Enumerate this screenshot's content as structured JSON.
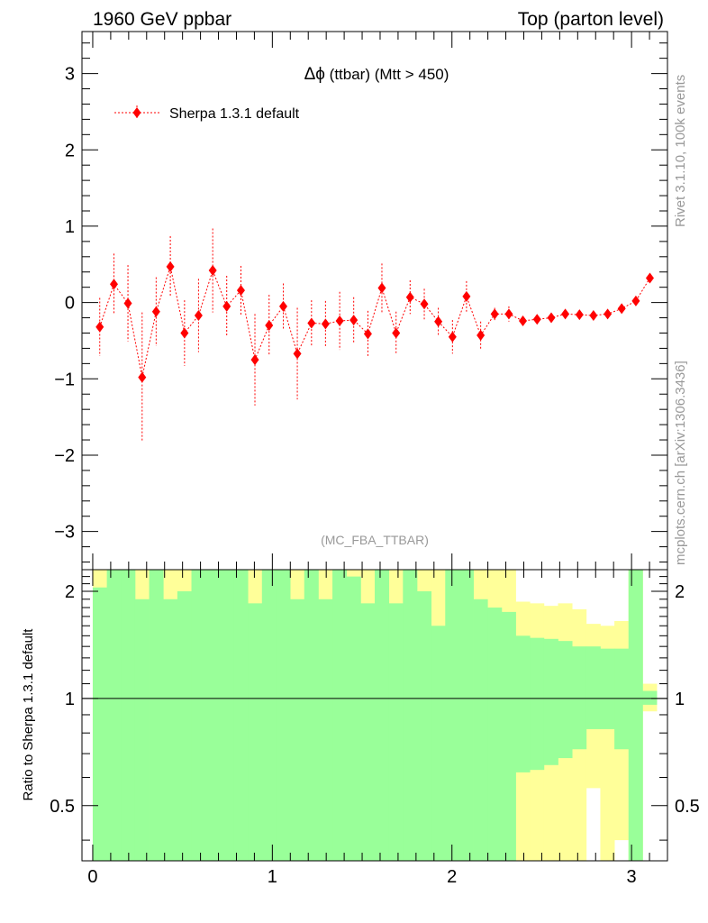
{
  "header": {
    "left": "1960 GeV ppbar",
    "right": "Top (parton level)"
  },
  "side_labels": {
    "rivet": "Rivet 3.1.10,  100k events",
    "mcplots": "mcplots.cern.ch [arXiv:1306.3436]"
  },
  "colors": {
    "series": "#ff0000",
    "band_inner": "#99ff99",
    "band_outer": "#ffff99",
    "axis": "#000000",
    "watermark": "#999999"
  },
  "chart_data": {
    "type": "scatter",
    "title": "Δϕ (ttbar) (Mtt > 450)",
    "title_symbol": "Δϕ",
    "title_rest": " (ttbar) (Mtt > 450)",
    "analysis": "(MC_FBA_TTBAR)",
    "xlim": [
      -0.06,
      3.2
    ],
    "ylim": [
      -3.5,
      3.55
    ],
    "x_ticks": [
      0,
      1,
      2,
      3
    ],
    "y_ticks": [
      -3,
      -2,
      -1,
      0,
      1,
      2,
      3
    ],
    "y_tick_labels": [
      "−3",
      "−2",
      "−1",
      "0",
      "1",
      "2",
      "3"
    ],
    "legend": "Sherpa 1.3.1 default",
    "legend_position": "top-left",
    "series": [
      {
        "name": "Sherpa 1.3.1 default",
        "x": [
          0.039,
          0.118,
          0.196,
          0.275,
          0.353,
          0.432,
          0.511,
          0.589,
          0.668,
          0.746,
          0.825,
          0.903,
          0.982,
          1.061,
          1.139,
          1.218,
          1.296,
          1.375,
          1.453,
          1.532,
          1.61,
          1.689,
          1.767,
          1.846,
          1.924,
          2.003,
          2.081,
          2.16,
          2.238,
          2.317,
          2.395,
          2.474,
          2.553,
          2.631,
          2.71,
          2.788,
          2.867,
          2.945,
          3.024,
          3.102
        ],
        "y": [
          -0.32,
          0.24,
          -0.01,
          -0.98,
          -0.12,
          0.47,
          -0.4,
          -0.17,
          0.42,
          -0.05,
          0.16,
          -0.75,
          -0.3,
          -0.05,
          -0.67,
          -0.27,
          -0.28,
          -0.24,
          -0.23,
          -0.41,
          0.19,
          -0.4,
          0.07,
          -0.02,
          -0.25,
          -0.45,
          0.08,
          -0.43,
          -0.15,
          -0.15,
          -0.24,
          -0.22,
          -0.2,
          -0.15,
          -0.16,
          -0.17,
          -0.15,
          -0.08,
          0.02,
          0.32
        ],
        "yerr": [
          0.38,
          0.4,
          0.5,
          0.85,
          0.45,
          0.4,
          0.43,
          0.48,
          0.55,
          0.4,
          0.32,
          0.6,
          0.4,
          0.3,
          0.6,
          0.3,
          0.3,
          0.38,
          0.3,
          0.3,
          0.32,
          0.28,
          0.22,
          0.2,
          0.18,
          0.22,
          0.2,
          0.18,
          0.08,
          0.1,
          0.06,
          0.06,
          0.05,
          0.04,
          0.04,
          0.04,
          0.04,
          0.04,
          0.04,
          0.04
        ]
      }
    ],
    "ratio_panel": {
      "ylabel": "Ratio to Sherpa 1.3.1 default",
      "ylim": [
        0.35,
        2.3
      ],
      "y_ticks": [
        0.5,
        1,
        2
      ],
      "y_tick_labels": [
        "0.5",
        "1",
        "2"
      ],
      "reference_line": 1,
      "bin_edges": [
        0.0,
        0.0785,
        0.157,
        0.2355,
        0.314,
        0.3925,
        0.471,
        0.5495,
        0.628,
        0.7065,
        0.785,
        0.8635,
        0.942,
        1.0205,
        1.099,
        1.1775,
        1.256,
        1.3345,
        1.413,
        1.4915,
        1.57,
        1.6485,
        1.727,
        1.8055,
        1.884,
        1.9625,
        2.041,
        2.1195,
        2.198,
        2.2765,
        2.355,
        2.4335,
        2.512,
        2.5905,
        2.669,
        2.7475,
        2.826,
        2.9045,
        2.983,
        3.0615,
        3.14
      ],
      "inner_band_upper": [
        2.05,
        2.3,
        2.3,
        1.9,
        2.3,
        1.9,
        2.0,
        2.3,
        2.3,
        2.3,
        2.3,
        1.85,
        2.3,
        2.3,
        1.9,
        2.3,
        1.9,
        2.3,
        2.2,
        1.85,
        2.3,
        1.85,
        2.3,
        2.0,
        1.6,
        2.3,
        2.3,
        1.9,
        1.8,
        1.75,
        1.5,
        1.48,
        1.47,
        1.45,
        1.4,
        1.4,
        1.38,
        1.38,
        2.3,
        1.05
      ],
      "outer_band_upper": [
        2.3,
        2.3,
        2.3,
        2.3,
        2.3,
        2.3,
        2.3,
        2.3,
        2.3,
        2.3,
        2.3,
        2.3,
        2.3,
        2.3,
        2.3,
        2.3,
        2.3,
        2.3,
        2.3,
        2.3,
        2.3,
        2.3,
        2.3,
        2.3,
        2.3,
        2.3,
        2.3,
        2.3,
        2.3,
        2.3,
        1.87,
        1.85,
        1.82,
        1.85,
        1.78,
        1.62,
        1.6,
        1.65,
        2.3,
        1.1
      ],
      "inner_band_lower": [
        0.35,
        0.35,
        0.35,
        0.35,
        0.35,
        0.35,
        0.35,
        0.35,
        0.35,
        0.35,
        0.35,
        0.35,
        0.35,
        0.35,
        0.35,
        0.35,
        0.35,
        0.35,
        0.35,
        0.35,
        0.35,
        0.35,
        0.35,
        0.35,
        0.35,
        0.35,
        0.35,
        0.35,
        0.35,
        0.35,
        0.62,
        0.63,
        0.65,
        0.68,
        0.72,
        0.82,
        0.82,
        0.72,
        0.35,
        0.96
      ],
      "outer_band_lower": [
        0.35,
        0.35,
        0.35,
        0.35,
        0.35,
        0.35,
        0.35,
        0.35,
        0.35,
        0.35,
        0.35,
        0.35,
        0.35,
        0.35,
        0.35,
        0.35,
        0.35,
        0.35,
        0.35,
        0.35,
        0.35,
        0.35,
        0.35,
        0.35,
        0.56,
        0.35,
        0.6,
        0.35,
        0.35,
        0.35,
        0.35,
        0.35,
        0.35,
        0.35,
        0.35,
        0.56,
        0.35,
        0.4,
        0.35,
        0.92
      ]
    }
  }
}
